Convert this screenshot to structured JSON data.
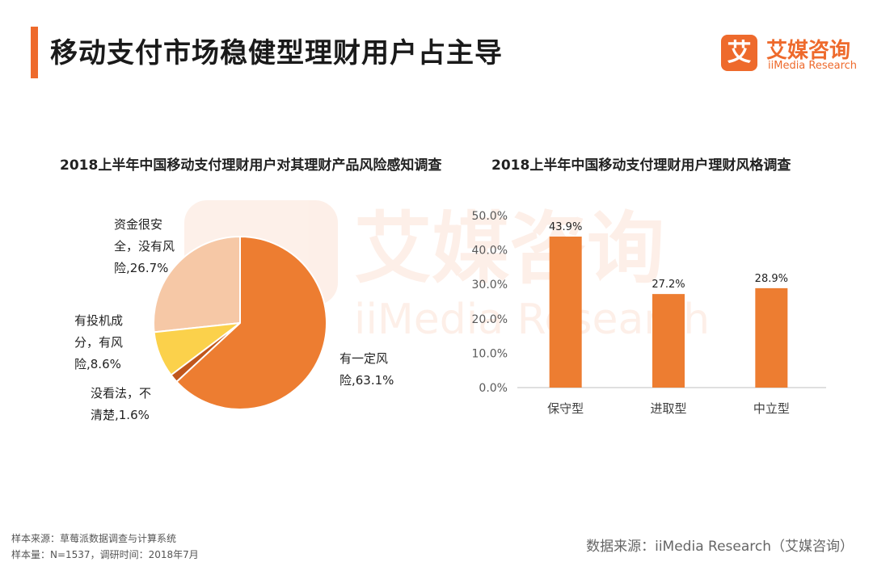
{
  "header": {
    "title": "移动支付市场稳健型理财用户占主导",
    "accent_color": "#ee6a2c"
  },
  "logo": {
    "glyph": "艾",
    "name_cn": "艾媒咨询",
    "name_en": "iiMedia Research"
  },
  "watermark": {
    "glyph": "艾",
    "name_cn": "艾媒咨询",
    "name_en": "iiMedia Research"
  },
  "chart_data": [
    {
      "type": "pie",
      "title": "2018上半年中国移动支付理财用户对其理财产品风险感知调查",
      "slices": [
        {
          "label_lines": [
            "资金很安",
            "全，没有风",
            "险,26.7%"
          ],
          "value": 26.7,
          "color": "#f6c8a6"
        },
        {
          "label_lines": [
            "有投机成",
            "分，有风",
            "险,8.6%"
          ],
          "value": 8.6,
          "color": "#fbd14b"
        },
        {
          "label_lines": [
            "没看法，不",
            "清楚,1.6%"
          ],
          "value": 1.6,
          "color": "#c0561c"
        },
        {
          "label_lines": [
            "有一定风",
            "险,63.1%"
          ],
          "value": 63.1,
          "color": "#ed7d31"
        }
      ]
    },
    {
      "type": "bar",
      "title": "2018上半年中国移动支付理财用户理财风格调查",
      "categories": [
        "保守型",
        "进取型",
        "中立型"
      ],
      "values": [
        43.9,
        27.2,
        28.9
      ],
      "value_labels": [
        "43.9%",
        "27.2%",
        "28.9%"
      ],
      "ylim": [
        0,
        50
      ],
      "yticks": [
        0,
        10,
        20,
        30,
        40,
        50
      ],
      "ytick_labels": [
        "0.0%",
        "10.0%",
        "20.0%",
        "30.0%",
        "40.0%",
        "50.0%"
      ],
      "bar_color": "#ed7d31",
      "grid": false
    }
  ],
  "footer": {
    "note_1": "样本来源：草莓派数据调查与计算系统",
    "note_2": "样本量：N=1537，调研时间：2018年7月",
    "source": "数据来源：iiMedia Research（艾媒咨询）"
  }
}
